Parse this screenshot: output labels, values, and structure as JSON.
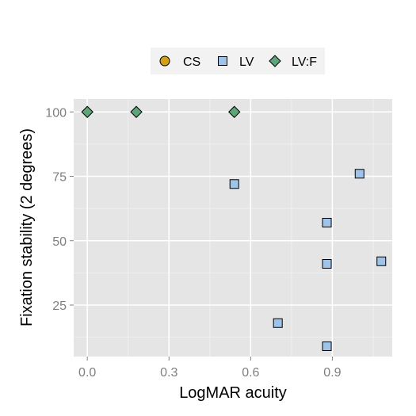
{
  "chart_data": {
    "type": "scatter",
    "xlabel": "LogMAR acuity",
    "ylabel": "Fixation stability (2 degrees)",
    "xlim": [
      -0.05,
      1.12
    ],
    "ylim": [
      5,
      105
    ],
    "x_ticks": [
      0.0,
      0.3,
      0.6,
      0.9
    ],
    "x_tick_labels": [
      "0.0",
      "0.3",
      "0.6",
      "0.9"
    ],
    "y_ticks": [
      25,
      50,
      75,
      100
    ],
    "y_tick_labels": [
      "25",
      "50",
      "75",
      "100"
    ],
    "grid": true,
    "legend_position": "top",
    "series": [
      {
        "name": "CS",
        "shape": "circle",
        "color": "#d4a017",
        "points": []
      },
      {
        "name": "LV",
        "shape": "square",
        "color": "#9ec4ea",
        "points": [
          [
            0.54,
            72
          ],
          [
            1.0,
            76
          ],
          [
            0.88,
            57
          ],
          [
            0.88,
            41
          ],
          [
            1.08,
            42
          ],
          [
            0.7,
            18
          ],
          [
            0.88,
            9
          ]
        ]
      },
      {
        "name": "LV:F",
        "shape": "diamond",
        "color": "#5fa57a",
        "points": [
          [
            0.0,
            100
          ],
          [
            0.18,
            100
          ],
          [
            0.54,
            100
          ]
        ]
      }
    ]
  }
}
